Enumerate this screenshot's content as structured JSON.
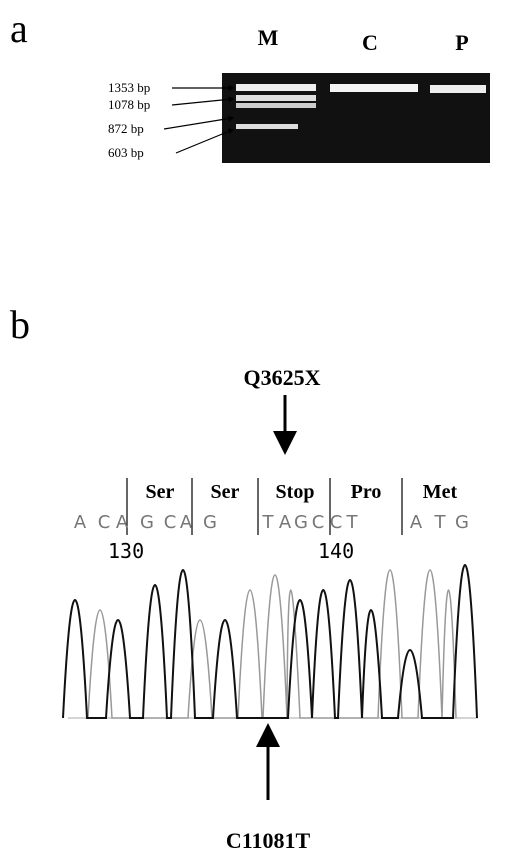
{
  "panel_a": {
    "label": "a",
    "lanes": [
      "M",
      "C",
      "P"
    ],
    "markers": [
      "1353 bp",
      "1078 bp",
      "872 bp",
      "603 bp"
    ]
  },
  "panel_b": {
    "label": "b",
    "mutation": "Q3625X",
    "amino_acids": [
      "Ser",
      "Ser",
      "Stop",
      "Pro",
      "Met"
    ],
    "bases": [
      "A",
      "C",
      "A",
      "G",
      "C",
      "A",
      "G",
      "T",
      "A",
      "G",
      "C",
      "C",
      "T",
      "A",
      "T",
      "G"
    ],
    "positions": [
      130,
      140
    ],
    "nucleotide_change": "C11081T"
  }
}
